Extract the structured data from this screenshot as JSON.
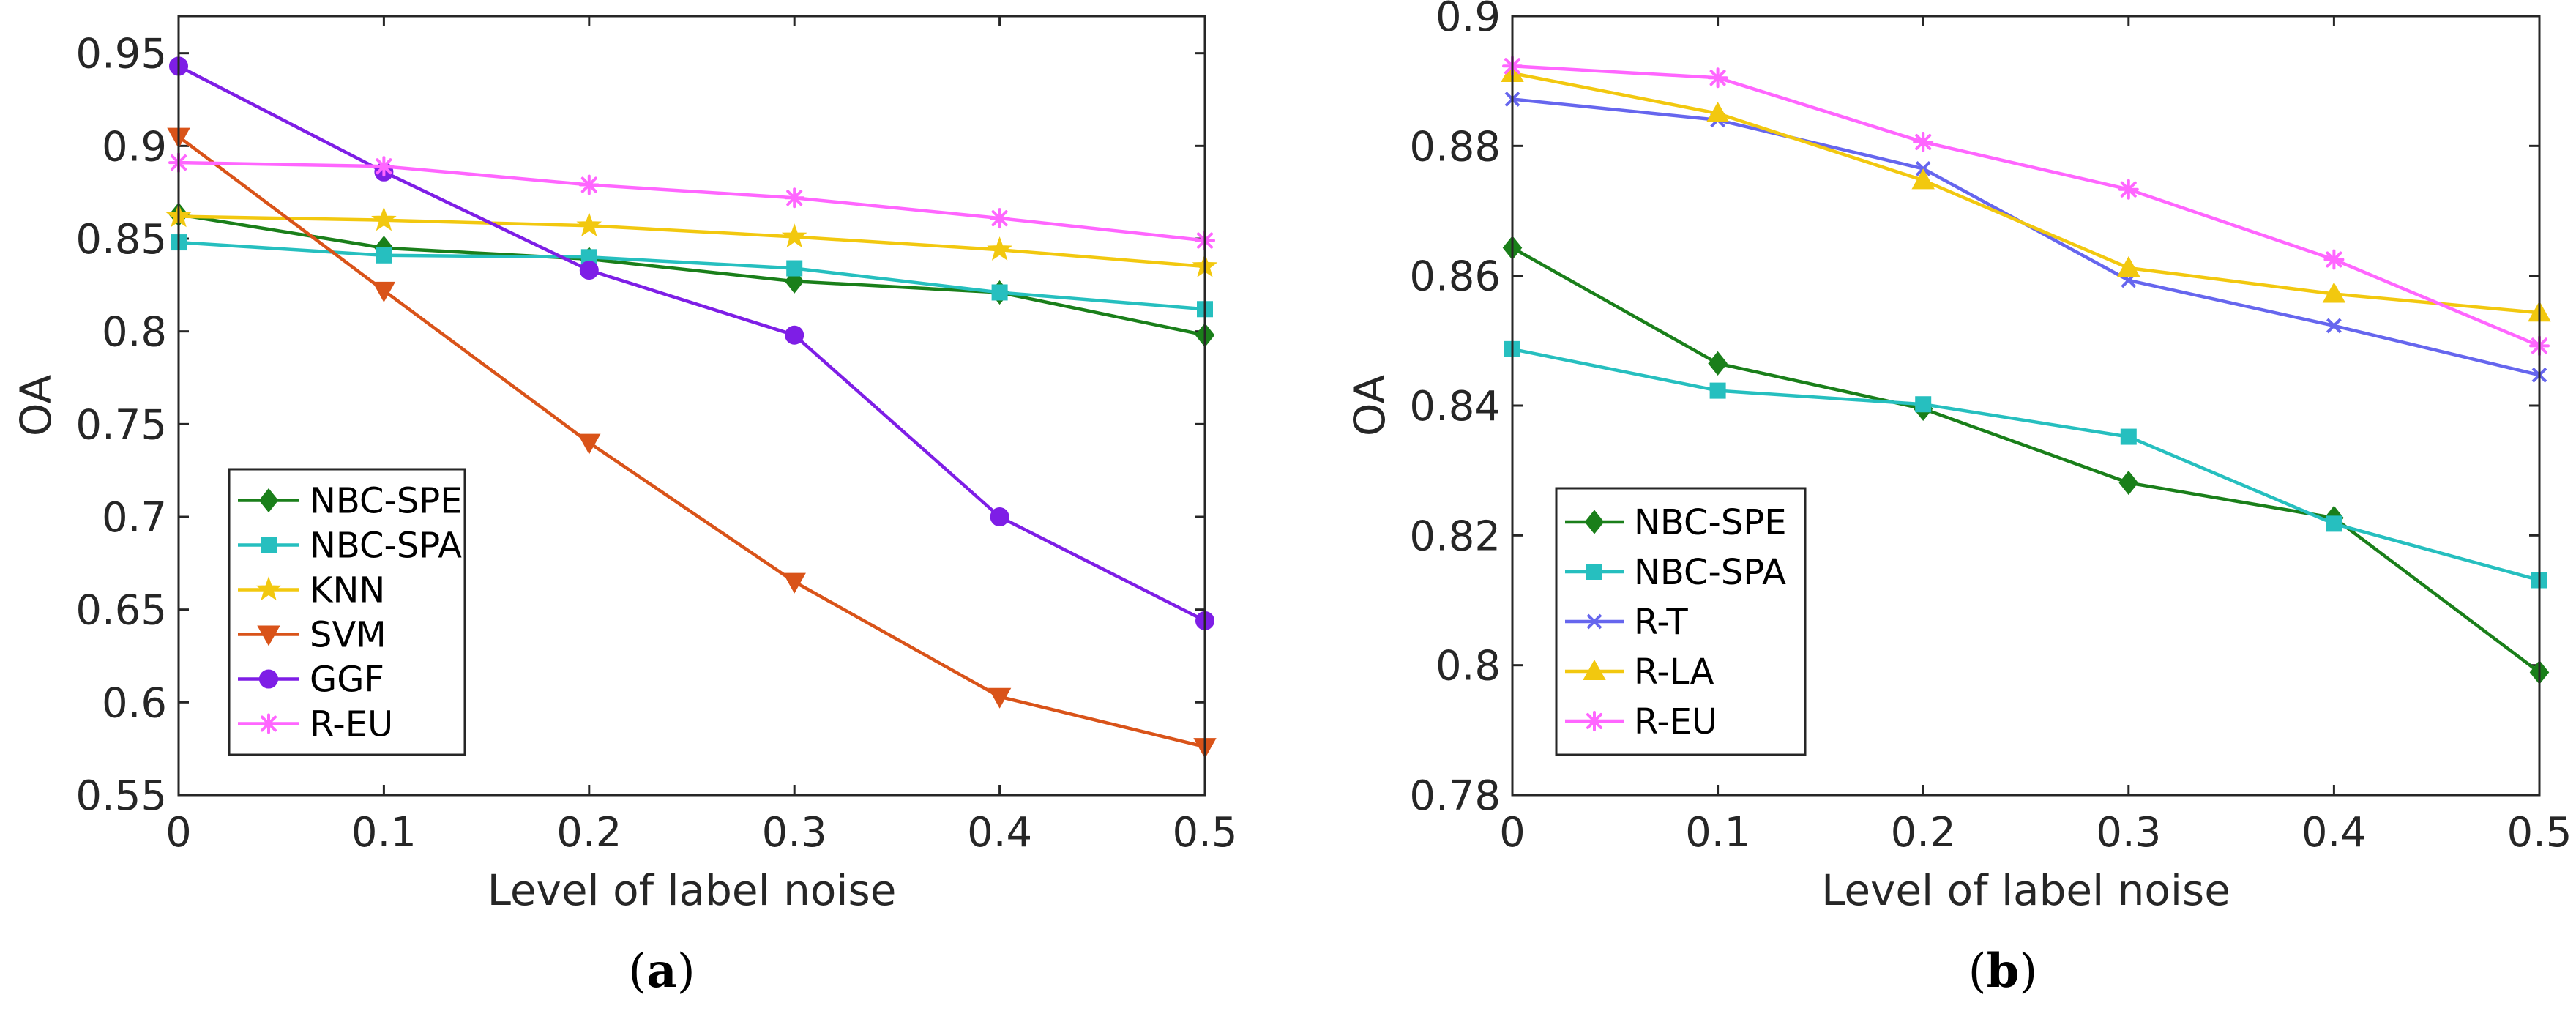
{
  "chart_data": [
    {
      "type": "line",
      "caption_open": "(",
      "caption_letter": "a",
      "caption_close": ")",
      "xlabel": "Level of label noise",
      "ylabel": "OA",
      "xlim": [
        0,
        0.5
      ],
      "ylim": [
        0.55,
        0.97
      ],
      "x": [
        0,
        0.1,
        0.2,
        0.3,
        0.4,
        0.5
      ],
      "xticks": [
        "0",
        "0.1",
        "0.2",
        "0.3",
        "0.4",
        "0.5"
      ],
      "ytick_values": [
        0.55,
        0.6,
        0.65,
        0.7,
        0.75,
        0.8,
        0.85,
        0.9,
        0.95
      ],
      "yticks": [
        "0.55",
        "0.6",
        "0.65",
        "0.7",
        "0.75",
        "0.8",
        "0.85",
        "0.9",
        "0.95"
      ],
      "legend_position": "bottom-left",
      "series": [
        {
          "name": "NBC-SPE",
          "color": "#1a7f1a",
          "marker": "diamond",
          "values": [
            0.863,
            0.845,
            0.839,
            0.827,
            0.821,
            0.798
          ]
        },
        {
          "name": "NBC-SPA",
          "color": "#26bfbf",
          "marker": "square",
          "values": [
            0.848,
            0.841,
            0.84,
            0.834,
            0.821,
            0.812
          ]
        },
        {
          "name": "KNN",
          "color": "#f2c80f",
          "marker": "star",
          "values": [
            0.862,
            0.86,
            0.857,
            0.851,
            0.844,
            0.835
          ]
        },
        {
          "name": "SVM",
          "color": "#d95319",
          "marker": "triangle-down",
          "values": [
            0.905,
            0.822,
            0.74,
            0.665,
            0.603,
            0.576
          ]
        },
        {
          "name": "GGF",
          "color": "#7e1ee6",
          "marker": "circle",
          "values": [
            0.943,
            0.886,
            0.833,
            0.798,
            0.7,
            0.644
          ]
        },
        {
          "name": "R-EU",
          "color": "#ff66ff",
          "marker": "asterisk",
          "values": [
            0.891,
            0.889,
            0.879,
            0.872,
            0.861,
            0.849
          ]
        }
      ]
    },
    {
      "type": "line",
      "caption_open": "(",
      "caption_letter": "b",
      "caption_close": ")",
      "xlabel": "Level of label noise",
      "ylabel": "OA",
      "xlim": [
        0,
        0.5
      ],
      "ylim": [
        0.78,
        0.9
      ],
      "x": [
        0,
        0.1,
        0.2,
        0.3,
        0.4,
        0.5
      ],
      "xticks": [
        "0",
        "0.1",
        "0.2",
        "0.3",
        "0.4",
        "0.5"
      ],
      "ytick_values": [
        0.78,
        0.8,
        0.82,
        0.84,
        0.86,
        0.88,
        0.9
      ],
      "yticks": [
        "0.78",
        "0.8",
        "0.82",
        "0.84",
        "0.86",
        "0.88",
        "0.9"
      ],
      "legend_position": "bottom-left",
      "series": [
        {
          "name": "NBC-SPE",
          "color": "#1a7f1a",
          "marker": "diamond",
          "values": [
            0.8643,
            0.8465,
            0.8395,
            0.8281,
            0.8227,
            0.7989
          ]
        },
        {
          "name": "NBC-SPA",
          "color": "#26bfbf",
          "marker": "square",
          "values": [
            0.8487,
            0.8423,
            0.8402,
            0.8352,
            0.8218,
            0.8131
          ]
        },
        {
          "name": "R-T",
          "color": "#6666ee",
          "marker": "x",
          "values": [
            0.8872,
            0.884,
            0.8765,
            0.8593,
            0.8523,
            0.8447
          ]
        },
        {
          "name": "R-LA",
          "color": "#f2c80f",
          "marker": "triangle-up",
          "values": [
            0.8912,
            0.885,
            0.8747,
            0.8612,
            0.8572,
            0.8543
          ]
        },
        {
          "name": "R-EU",
          "color": "#ff66ff",
          "marker": "asterisk",
          "values": [
            0.8923,
            0.8905,
            0.8806,
            0.8733,
            0.8625,
            0.8492
          ]
        }
      ]
    }
  ]
}
